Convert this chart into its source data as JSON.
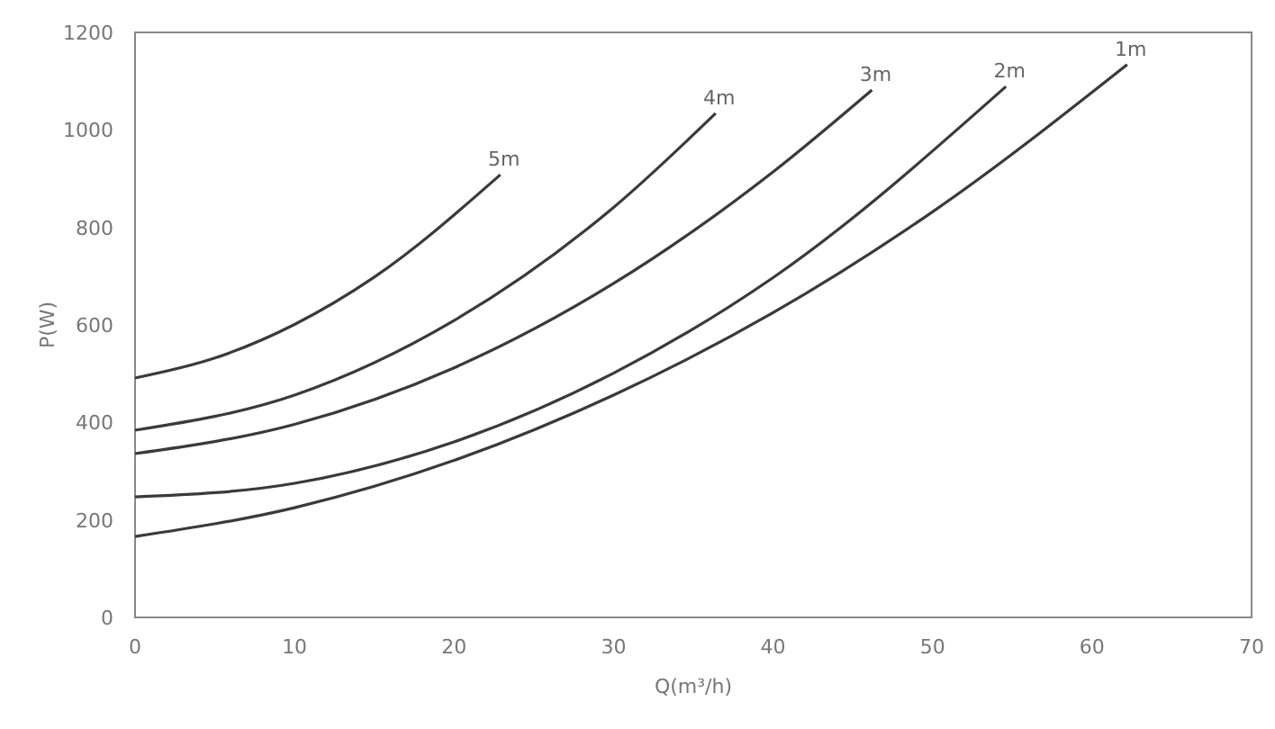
{
  "chart_data": {
    "type": "line",
    "xlabel": "Q(m³/h)",
    "ylabel": "P(W)",
    "xlim": [
      0,
      70
    ],
    "xticks": [
      0,
      10,
      20,
      30,
      40,
      50,
      60,
      70
    ],
    "ylim": [
      0,
      1200
    ],
    "yticks": [
      0,
      200,
      400,
      600,
      800,
      1000,
      1200
    ],
    "grid": false,
    "marker": "none",
    "line_style": "solid",
    "series": [
      {
        "name": "5m",
        "color": "#3a3a3a",
        "x": [
          0,
          5,
          10,
          15,
          22.9
        ],
        "values": [
          491,
          532,
          601,
          698,
          908
        ]
      },
      {
        "name": "4m",
        "color": "#3a3a3a",
        "x": [
          0,
          10,
          20,
          30,
          36.4
        ],
        "values": [
          384,
          456,
          609,
          841,
          1034
        ]
      },
      {
        "name": "3m",
        "color": "#3a3a3a",
        "x": [
          0,
          10,
          20,
          30,
          40,
          46.2
        ],
        "values": [
          336,
          396,
          512,
          685,
          914,
          1082
        ]
      },
      {
        "name": "2m",
        "color": "#3a3a3a",
        "x": [
          0,
          10,
          20,
          30,
          40,
          54.6
        ],
        "values": [
          247,
          275,
          360,
          501,
          697,
          1089
        ]
      },
      {
        "name": "1m",
        "color": "#3a3a3a",
        "x": [
          0,
          10,
          20,
          30,
          40,
          50,
          62.2
        ],
        "values": [
          166,
          225,
          322,
          456,
          625,
          832,
          1134
        ]
      }
    ]
  }
}
